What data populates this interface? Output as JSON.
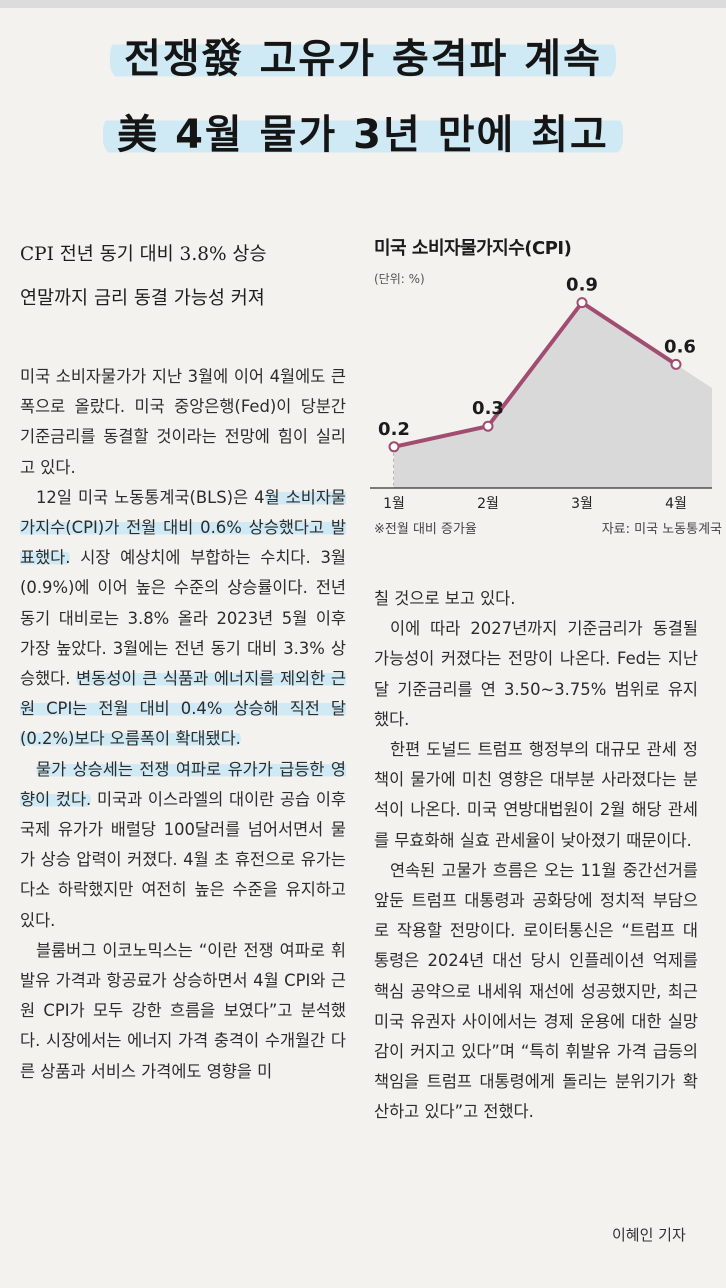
{
  "headline": {
    "line1": "전쟁發 고유가 충격파 계속",
    "line2": "美 4월 물가 3년 만에 최고"
  },
  "subheadline": {
    "line1": "CPI 전년 동기 대비 3.8% 상승",
    "line2": "연말까지 금리 동결 가능성 커져"
  },
  "chart_data": {
    "type": "line",
    "title": "미국 소비자물가지수(CPI)",
    "unit": "(단위: %)",
    "categories": [
      "1월",
      "2월",
      "3월",
      "4월"
    ],
    "values": [
      0.2,
      0.3,
      0.9,
      0.6
    ],
    "data_labels": [
      "0.2",
      "0.3",
      "0.9",
      "0.6"
    ],
    "ylim": [
      0,
      1.0
    ],
    "note": "※전월 대비 증가율",
    "source": "자료: 미국 노동통계국",
    "colors": {
      "line": "#a04d71",
      "fill": "#d9d9d9",
      "marker_fill": "#ffffff"
    }
  },
  "article": {
    "left": [
      [
        "미국 소비자물가가 지난 3월에 이어 4월에도 큰 폭으로 올랐다. 미국 중앙은행(Fed)이 당분간 기준금리를 동결할 것이라는 전망에 힘이 실리고 있다."
      ],
      [
        "12일 미국 노동통계국(BLS)은 4",
        "월 소비자물가지수(CPI)가 전월 대비 0.6% 상승했다고 발표했다.",
        " 시장 예상치에 부합하는 수치다. 3월(0.9%)에 이어 높은 수준의 상승률이다. 전년 동기 대비로는 3.8% 올라 2023년 5월 이후 가장 높았다. 3월에는 전년 동기 대비 3.3% 상승했다. ",
        "변동성이 큰 식품과 에너지를 제외한 근원 CPI는 전월 대비 0.4% 상승해 직전 달(0.2%)보다 오름폭이 확대됐다."
      ],
      [
        "",
        "물가 상승세는 전쟁 여파로 유가가 급등한 영향이 컸다.",
        " 미국과 이스라엘의 대이란 공습 이후 국제 유가가 배럴당 100달러를 넘어서면서 물가 상승 압력이 커졌다. 4월 초 휴전으로 유가는 다소 하락했지만 여전히 높은 수준을 유지하고 있다."
      ],
      [
        "블룸버그 이코노믹스는 “이란 전쟁 여파로 휘발유 가격과 항공료가 상승하면서 4월 CPI와 근원 CPI가 모두 강한 흐름을 보였다”고 분석했다. 시장에서는 에너지 가격 충격이 수개월간 다른 상품과 서비스 가격에도 영향을 미"
      ]
    ],
    "right": [
      [
        "칠 것으로 보고 있다."
      ],
      [
        "이에 따라 2027년까지 기준금리가 동결될 가능성이 커졌다는 전망이 나온다. Fed는 지난달 기준금리를 연 3.50~3.75% 범위로 유지했다."
      ],
      [
        "한편 도널드 트럼프 행정부의 대규모 관세 정책이 물가에 미친 영향은 대부분 사라졌다는 분석이 나온다. 미국 연방대법원이 2월 해당 관세를 무효화해 실효 관세율이 낮아졌기 때문이다."
      ],
      [
        "연속된 고물가 흐름은 오는 11월 중간선거를 앞둔 트럼프 대통령과 공화당에 정치적 부담으로 작용할 전망이다. 로이터통신은 “트럼프 대통령은 2024년 대선 당시 인플레이션 억제를 핵심 공약으로 내세워 재선에 성공했지만, 최근 미국 유권자 사이에서는 경제 운용에 대한 실망감이 커지고 있다”며 “특히 휘발유 가격 급등의 책임을 트럼프 대통령에게 돌리는 분위기가 확산하고 있다”고 전했다."
      ]
    ],
    "byline": "이혜인 기자"
  }
}
